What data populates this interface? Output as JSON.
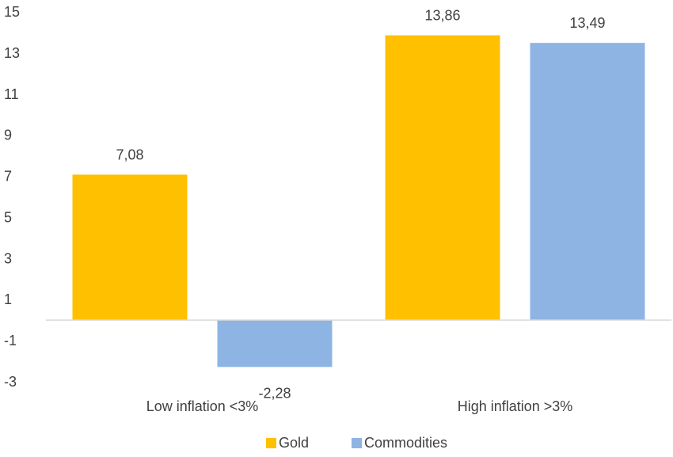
{
  "chart_data": {
    "type": "bar",
    "categories": [
      "Low inflation <3%",
      "High inflation >3%"
    ],
    "series": [
      {
        "name": "Gold",
        "values": [
          7.08,
          13.86
        ],
        "labels": [
          "7,08",
          "13,86"
        ],
        "color": "#FFC000"
      },
      {
        "name": "Commodities",
        "values": [
          -2.28,
          13.49
        ],
        "labels": [
          "-2,28",
          "13,49"
        ],
        "color": "#8EB4E3"
      }
    ],
    "yticks": [
      "15",
      "13",
      "11",
      "9",
      "7",
      "5",
      "3",
      "1",
      "-1",
      "-3"
    ],
    "ylim": [
      -3,
      15
    ],
    "grid": false,
    "legend_position": "bottom",
    "axis_color": "#D9D9D9"
  }
}
